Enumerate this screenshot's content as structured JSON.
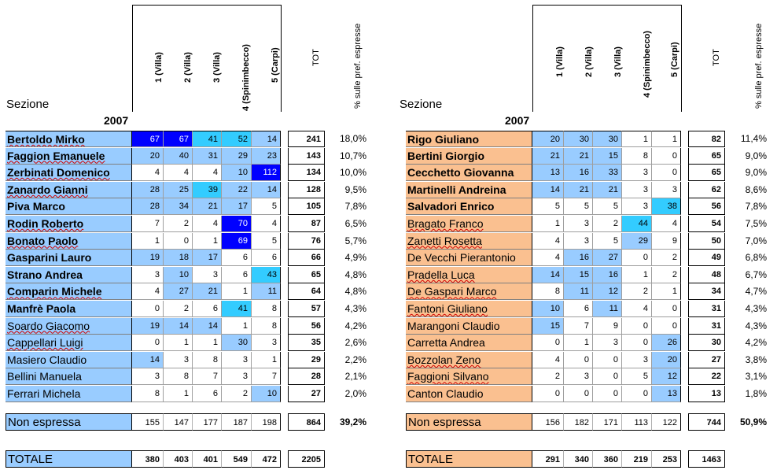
{
  "left": {
    "sezione": "Sezione",
    "year": "2007",
    "columns": [
      "1 (Villa)",
      "2 (Villa)",
      "3 (Villa)",
      "4 (Spinimbecco)",
      "5 (Carpi)"
    ],
    "tot_label": "TOT",
    "pct_label": "% sulle pref. espresse",
    "rows": [
      {
        "name": "Bertoldo Mirko",
        "v": [
          "67",
          "67",
          "41",
          "52",
          "14"
        ],
        "tot": "241",
        "pct": "18,0%"
      },
      {
        "name": "Faggion Emanuele",
        "v": [
          "20",
          "40",
          "31",
          "29",
          "23"
        ],
        "tot": "143",
        "pct": "10,7%"
      },
      {
        "name": "Zerbinati Domenico",
        "v": [
          "4",
          "4",
          "4",
          "10",
          "112"
        ],
        "tot": "134",
        "pct": "10,0%"
      },
      {
        "name": "Zanardo Gianni",
        "v": [
          "28",
          "25",
          "39",
          "22",
          "14"
        ],
        "tot": "128",
        "pct": "9,5%"
      },
      {
        "name": "Piva Marco",
        "v": [
          "28",
          "34",
          "21",
          "17",
          "5"
        ],
        "tot": "105",
        "pct": "7,8%"
      },
      {
        "name": "Rodin Roberto",
        "v": [
          "7",
          "2",
          "4",
          "70",
          "4"
        ],
        "tot": "87",
        "pct": "6,5%"
      },
      {
        "name": "Bonato Paolo",
        "v": [
          "1",
          "0",
          "1",
          "69",
          "5"
        ],
        "tot": "76",
        "pct": "5,7%"
      },
      {
        "name": "Gasparini Lauro",
        "v": [
          "19",
          "18",
          "17",
          "6",
          "6"
        ],
        "tot": "66",
        "pct": "4,9%"
      },
      {
        "name": "Strano Andrea",
        "v": [
          "3",
          "10",
          "3",
          "6",
          "43"
        ],
        "tot": "65",
        "pct": "4,8%"
      },
      {
        "name": "Comparin Michele",
        "v": [
          "4",
          "27",
          "21",
          "1",
          "11"
        ],
        "tot": "64",
        "pct": "4,8%"
      },
      {
        "name": "Manfrè Paola",
        "v": [
          "0",
          "2",
          "6",
          "41",
          "8"
        ],
        "tot": "57",
        "pct": "4,3%"
      },
      {
        "name": "Soardo Giacomo",
        "v": [
          "19",
          "14",
          "14",
          "1",
          "8"
        ],
        "tot": "56",
        "pct": "4,2%"
      },
      {
        "name": "Cappellari Luigi",
        "v": [
          "0",
          "1",
          "1",
          "30",
          "3"
        ],
        "tot": "35",
        "pct": "2,6%"
      },
      {
        "name": "Masiero Claudio",
        "v": [
          "14",
          "3",
          "8",
          "3",
          "1"
        ],
        "tot": "29",
        "pct": "2,2%"
      },
      {
        "name": "Bellini Manuela",
        "v": [
          "3",
          "8",
          "7",
          "3",
          "7"
        ],
        "tot": "28",
        "pct": "2,1%"
      },
      {
        "name": "Ferrari Michela",
        "v": [
          "8",
          "1",
          "6",
          "2",
          "10"
        ],
        "tot": "27",
        "pct": "2,0%"
      }
    ],
    "non_espressa": {
      "label": "Non espressa",
      "v": [
        "155",
        "147",
        "177",
        "187",
        "198"
      ],
      "tot": "864",
      "pct": "39,2%"
    },
    "totale": {
      "label": "TOTALE",
      "v": [
        "380",
        "403",
        "401",
        "549",
        "472"
      ],
      "tot": "2205"
    }
  },
  "right": {
    "sezione": "Sezione",
    "year": "2007",
    "columns": [
      "1 (Villa)",
      "2 (Villa)",
      "3 (Villa)",
      "4 (Spinimbecco)",
      "5 (Carpi)"
    ],
    "tot_label": "TOT",
    "pct_label": "% sulle pref. espresse",
    "rows": [
      {
        "name": "Rigo Giuliano",
        "v": [
          "20",
          "30",
          "30",
          "1",
          "1"
        ],
        "tot": "82",
        "pct": "11,4%"
      },
      {
        "name": "Bertini Giorgio",
        "v": [
          "21",
          "21",
          "15",
          "8",
          "0"
        ],
        "tot": "65",
        "pct": "9,0%"
      },
      {
        "name": "Cecchetto Giovanna",
        "v": [
          "13",
          "16",
          "33",
          "3",
          "0"
        ],
        "tot": "65",
        "pct": "9,0%"
      },
      {
        "name": "Martinelli Andreina",
        "v": [
          "14",
          "21",
          "21",
          "3",
          "3"
        ],
        "tot": "62",
        "pct": "8,6%"
      },
      {
        "name": "Salvadori Enrico",
        "v": [
          "5",
          "5",
          "5",
          "3",
          "38"
        ],
        "tot": "56",
        "pct": "7,8%"
      },
      {
        "name": "Bragato Franco",
        "v": [
          "1",
          "3",
          "2",
          "44",
          "4"
        ],
        "tot": "54",
        "pct": "7,5%"
      },
      {
        "name": "Zanetti Rosetta",
        "v": [
          "4",
          "3",
          "5",
          "29",
          "9"
        ],
        "tot": "50",
        "pct": "7,0%"
      },
      {
        "name": "De Vecchi Pierantonio",
        "v": [
          "4",
          "16",
          "27",
          "0",
          "2"
        ],
        "tot": "49",
        "pct": "6,8%"
      },
      {
        "name": "Pradella Luca",
        "v": [
          "14",
          "15",
          "16",
          "1",
          "2"
        ],
        "tot": "48",
        "pct": "6,7%"
      },
      {
        "name": "De Gaspari Marco",
        "v": [
          "8",
          "11",
          "12",
          "2",
          "1"
        ],
        "tot": "34",
        "pct": "4,7%"
      },
      {
        "name": "Fantoni Giuliano",
        "v": [
          "10",
          "6",
          "11",
          "4",
          "0"
        ],
        "tot": "31",
        "pct": "4,3%"
      },
      {
        "name": "Marangoni Claudio",
        "v": [
          "15",
          "7",
          "9",
          "0",
          "0"
        ],
        "tot": "31",
        "pct": "4,3%"
      },
      {
        "name": "Carretta Andrea",
        "v": [
          "0",
          "1",
          "3",
          "0",
          "26"
        ],
        "tot": "30",
        "pct": "4,2%"
      },
      {
        "name": "Bozzolan Zeno",
        "v": [
          "4",
          "0",
          "0",
          "3",
          "20"
        ],
        "tot": "27",
        "pct": "3,8%"
      },
      {
        "name": "Faggioni Silvano",
        "v": [
          "2",
          "3",
          "0",
          "5",
          "12"
        ],
        "tot": "22",
        "pct": "3,1%"
      },
      {
        "name": "Canton Claudio",
        "v": [
          "0",
          "0",
          "0",
          "0",
          "13"
        ],
        "tot": "13",
        "pct": "1,8%"
      }
    ],
    "non_espressa": {
      "label": "Non espressa",
      "v": [
        "156",
        "182",
        "171",
        "113",
        "122"
      ],
      "tot": "744",
      "pct": "50,9%"
    },
    "totale": {
      "label": "TOTALE",
      "v": [
        "291",
        "340",
        "360",
        "219",
        "253"
      ],
      "tot": "1463"
    }
  },
  "colors": {
    "light_blue": "#99ccff",
    "cyan": "#33ccff",
    "dark_blue": "#0000ff",
    "name_blue": "#99ccff",
    "name_orange": "#fac090"
  }
}
